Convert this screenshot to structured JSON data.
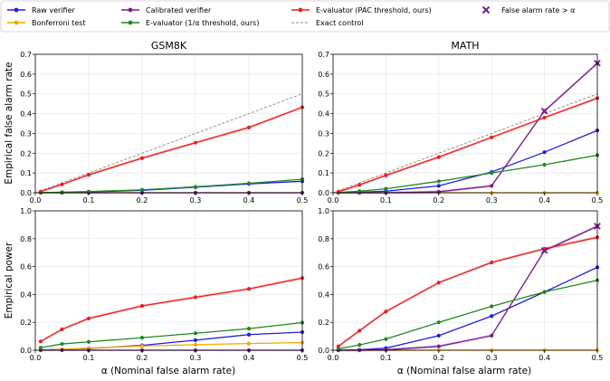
{
  "legend": [
    {
      "label": "Raw verifier",
      "color": "#1f1fdd",
      "style": "line-marker"
    },
    {
      "label": "Bonferroni test",
      "color": "#f2a900",
      "style": "line-marker"
    },
    {
      "label": "Calibrated verifier",
      "color": "#7b1d8f",
      "style": "line-marker"
    },
    {
      "label": "E-valuator (1/α threshold, ours)",
      "color": "#1f8a1f",
      "style": "line-marker"
    },
    {
      "label": "E-valuator (PAC threshold, ours)",
      "color": "#e82020",
      "style": "line-marker"
    },
    {
      "label": "Exact control",
      "color": "#888888",
      "style": "dashed"
    },
    {
      "label": "False alarm rate > α",
      "color": "#7b1d8f",
      "style": "x-marker"
    }
  ],
  "xlabel": "α (Nominal false alarm rate)",
  "chart_data": [
    {
      "type": "line",
      "title": "GSM8K",
      "ylabel": "Empirical false alarm rate",
      "x": [
        0.01,
        0.05,
        0.1,
        0.2,
        0.3,
        0.4,
        0.5
      ],
      "xlim": [
        0,
        0.5
      ],
      "ylim": [
        0,
        0.7
      ],
      "xticks": [
        "0.0",
        "0.1",
        "0.2",
        "0.3",
        "0.4",
        "0.5"
      ],
      "yticks": [
        "0.0",
        "0.1",
        "0.2",
        "0.3",
        "0.4",
        "0.5",
        "0.6",
        "0.7"
      ],
      "exact_control": true,
      "series": [
        {
          "name": "Raw verifier",
          "color": "#1f1fdd",
          "values": [
            0.0,
            0.002,
            0.004,
            0.012,
            0.028,
            0.045,
            0.058
          ]
        },
        {
          "name": "Bonferroni test",
          "color": "#f2a900",
          "values": [
            0.0,
            0.0,
            0.0,
            0.0,
            0.0,
            0.0,
            0.0
          ]
        },
        {
          "name": "Calibrated verifier",
          "color": "#7b1d8f",
          "values": [
            0.0,
            0.0,
            0.0,
            0.0,
            0.0,
            0.0,
            0.0
          ]
        },
        {
          "name": "E-valuator (1/α threshold, ours)",
          "color": "#1f8a1f",
          "values": [
            0.001,
            0.003,
            0.006,
            0.015,
            0.03,
            0.048,
            0.068
          ]
        },
        {
          "name": "E-valuator (PAC threshold, ours)",
          "color": "#e82020",
          "band": true,
          "values": [
            0.006,
            0.042,
            0.091,
            0.175,
            0.253,
            0.33,
            0.432
          ]
        }
      ],
      "exceed_markers": []
    },
    {
      "type": "line",
      "title": "MATH",
      "ylabel": "",
      "x": [
        0.01,
        0.05,
        0.1,
        0.2,
        0.3,
        0.4,
        0.5
      ],
      "xlim": [
        0,
        0.5
      ],
      "ylim": [
        0,
        0.7
      ],
      "xticks": [
        "0.0",
        "0.1",
        "0.2",
        "0.3",
        "0.4",
        "0.5"
      ],
      "yticks": [
        "0.0",
        "0.1",
        "0.2",
        "0.3",
        "0.4",
        "0.5",
        "0.6",
        "0.7"
      ],
      "exact_control": true,
      "series": [
        {
          "name": "Raw verifier",
          "color": "#1f1fdd",
          "values": [
            0.0,
            0.003,
            0.008,
            0.035,
            0.105,
            0.205,
            0.315
          ]
        },
        {
          "name": "Bonferroni test",
          "color": "#f2a900",
          "values": [
            0.0,
            0.0,
            0.0,
            0.0,
            0.0,
            0.0,
            0.0
          ]
        },
        {
          "name": "Calibrated verifier",
          "color": "#7b1d8f",
          "band": true,
          "values": [
            0.0,
            0.0,
            0.0,
            0.005,
            0.035,
            0.413,
            0.655
          ]
        },
        {
          "name": "E-valuator (1/α threshold, ours)",
          "color": "#1f8a1f",
          "values": [
            0.001,
            0.008,
            0.02,
            0.058,
            0.1,
            0.142,
            0.19
          ]
        },
        {
          "name": "E-valuator (PAC threshold, ours)",
          "color": "#e82020",
          "band": true,
          "values": [
            0.005,
            0.04,
            0.088,
            0.18,
            0.28,
            0.38,
            0.478
          ]
        }
      ],
      "exceed_markers": [
        {
          "x": 0.4,
          "y": 0.413
        },
        {
          "x": 0.5,
          "y": 0.655
        }
      ]
    },
    {
      "type": "line",
      "title": "",
      "ylabel": "Empirical power",
      "x": [
        0.01,
        0.05,
        0.1,
        0.2,
        0.3,
        0.4,
        0.5
      ],
      "xlim": [
        0,
        0.5
      ],
      "ylim": [
        0,
        1.0
      ],
      "xticks": [
        "0.0",
        "0.1",
        "0.2",
        "0.3",
        "0.4",
        "0.5"
      ],
      "yticks": [
        "0.0",
        "0.2",
        "0.4",
        "0.6",
        "0.8",
        "1.0"
      ],
      "exact_control": false,
      "series": [
        {
          "name": "Raw verifier",
          "color": "#1f1fdd",
          "values": [
            0.002,
            0.006,
            0.012,
            0.035,
            0.072,
            0.112,
            0.13
          ]
        },
        {
          "name": "Bonferroni test",
          "color": "#f2a900",
          "values": [
            0.0,
            0.006,
            0.015,
            0.03,
            0.04,
            0.048,
            0.055
          ]
        },
        {
          "name": "Calibrated verifier",
          "color": "#7b1d8f",
          "values": [
            0.0,
            0.0,
            0.0,
            0.0,
            0.0,
            0.0,
            0.0
          ]
        },
        {
          "name": "E-valuator (1/α threshold, ours)",
          "color": "#1f8a1f",
          "values": [
            0.018,
            0.045,
            0.06,
            0.09,
            0.122,
            0.155,
            0.198
          ]
        },
        {
          "name": "E-valuator (PAC threshold, ours)",
          "color": "#e82020",
          "band": true,
          "values": [
            0.063,
            0.15,
            0.228,
            0.318,
            0.38,
            0.44,
            0.518
          ]
        }
      ],
      "exceed_markers": []
    },
    {
      "type": "line",
      "title": "",
      "ylabel": "",
      "x": [
        0.01,
        0.05,
        0.1,
        0.2,
        0.3,
        0.4,
        0.5
      ],
      "xlim": [
        0,
        0.5
      ],
      "ylim": [
        0,
        1.0
      ],
      "xticks": [
        "0.0",
        "0.1",
        "0.2",
        "0.3",
        "0.4",
        "0.5"
      ],
      "yticks": [
        "0.0",
        "0.2",
        "0.4",
        "0.6",
        "0.8",
        "1.0"
      ],
      "exact_control": false,
      "series": [
        {
          "name": "Raw verifier",
          "color": "#1f1fdd",
          "values": [
            0.0,
            0.003,
            0.015,
            0.105,
            0.245,
            0.418,
            0.595
          ]
        },
        {
          "name": "Bonferroni test",
          "color": "#f2a900",
          "values": [
            0.0,
            0.0,
            0.0,
            0.0,
            0.0,
            0.0,
            0.0
          ]
        },
        {
          "name": "Calibrated verifier",
          "color": "#7b1d8f",
          "band": true,
          "values": [
            0.0,
            0.0,
            0.003,
            0.028,
            0.105,
            0.715,
            0.89
          ]
        },
        {
          "name": "E-valuator (1/α threshold, ours)",
          "color": "#1f8a1f",
          "values": [
            0.01,
            0.038,
            0.08,
            0.2,
            0.315,
            0.418,
            0.502
          ]
        },
        {
          "name": "E-valuator (PAC threshold, ours)",
          "color": "#e82020",
          "band": true,
          "values": [
            0.028,
            0.14,
            0.278,
            0.485,
            0.63,
            0.728,
            0.81
          ]
        }
      ],
      "exceed_markers": [
        {
          "x": 0.4,
          "y": 0.715
        },
        {
          "x": 0.5,
          "y": 0.89
        }
      ]
    }
  ]
}
